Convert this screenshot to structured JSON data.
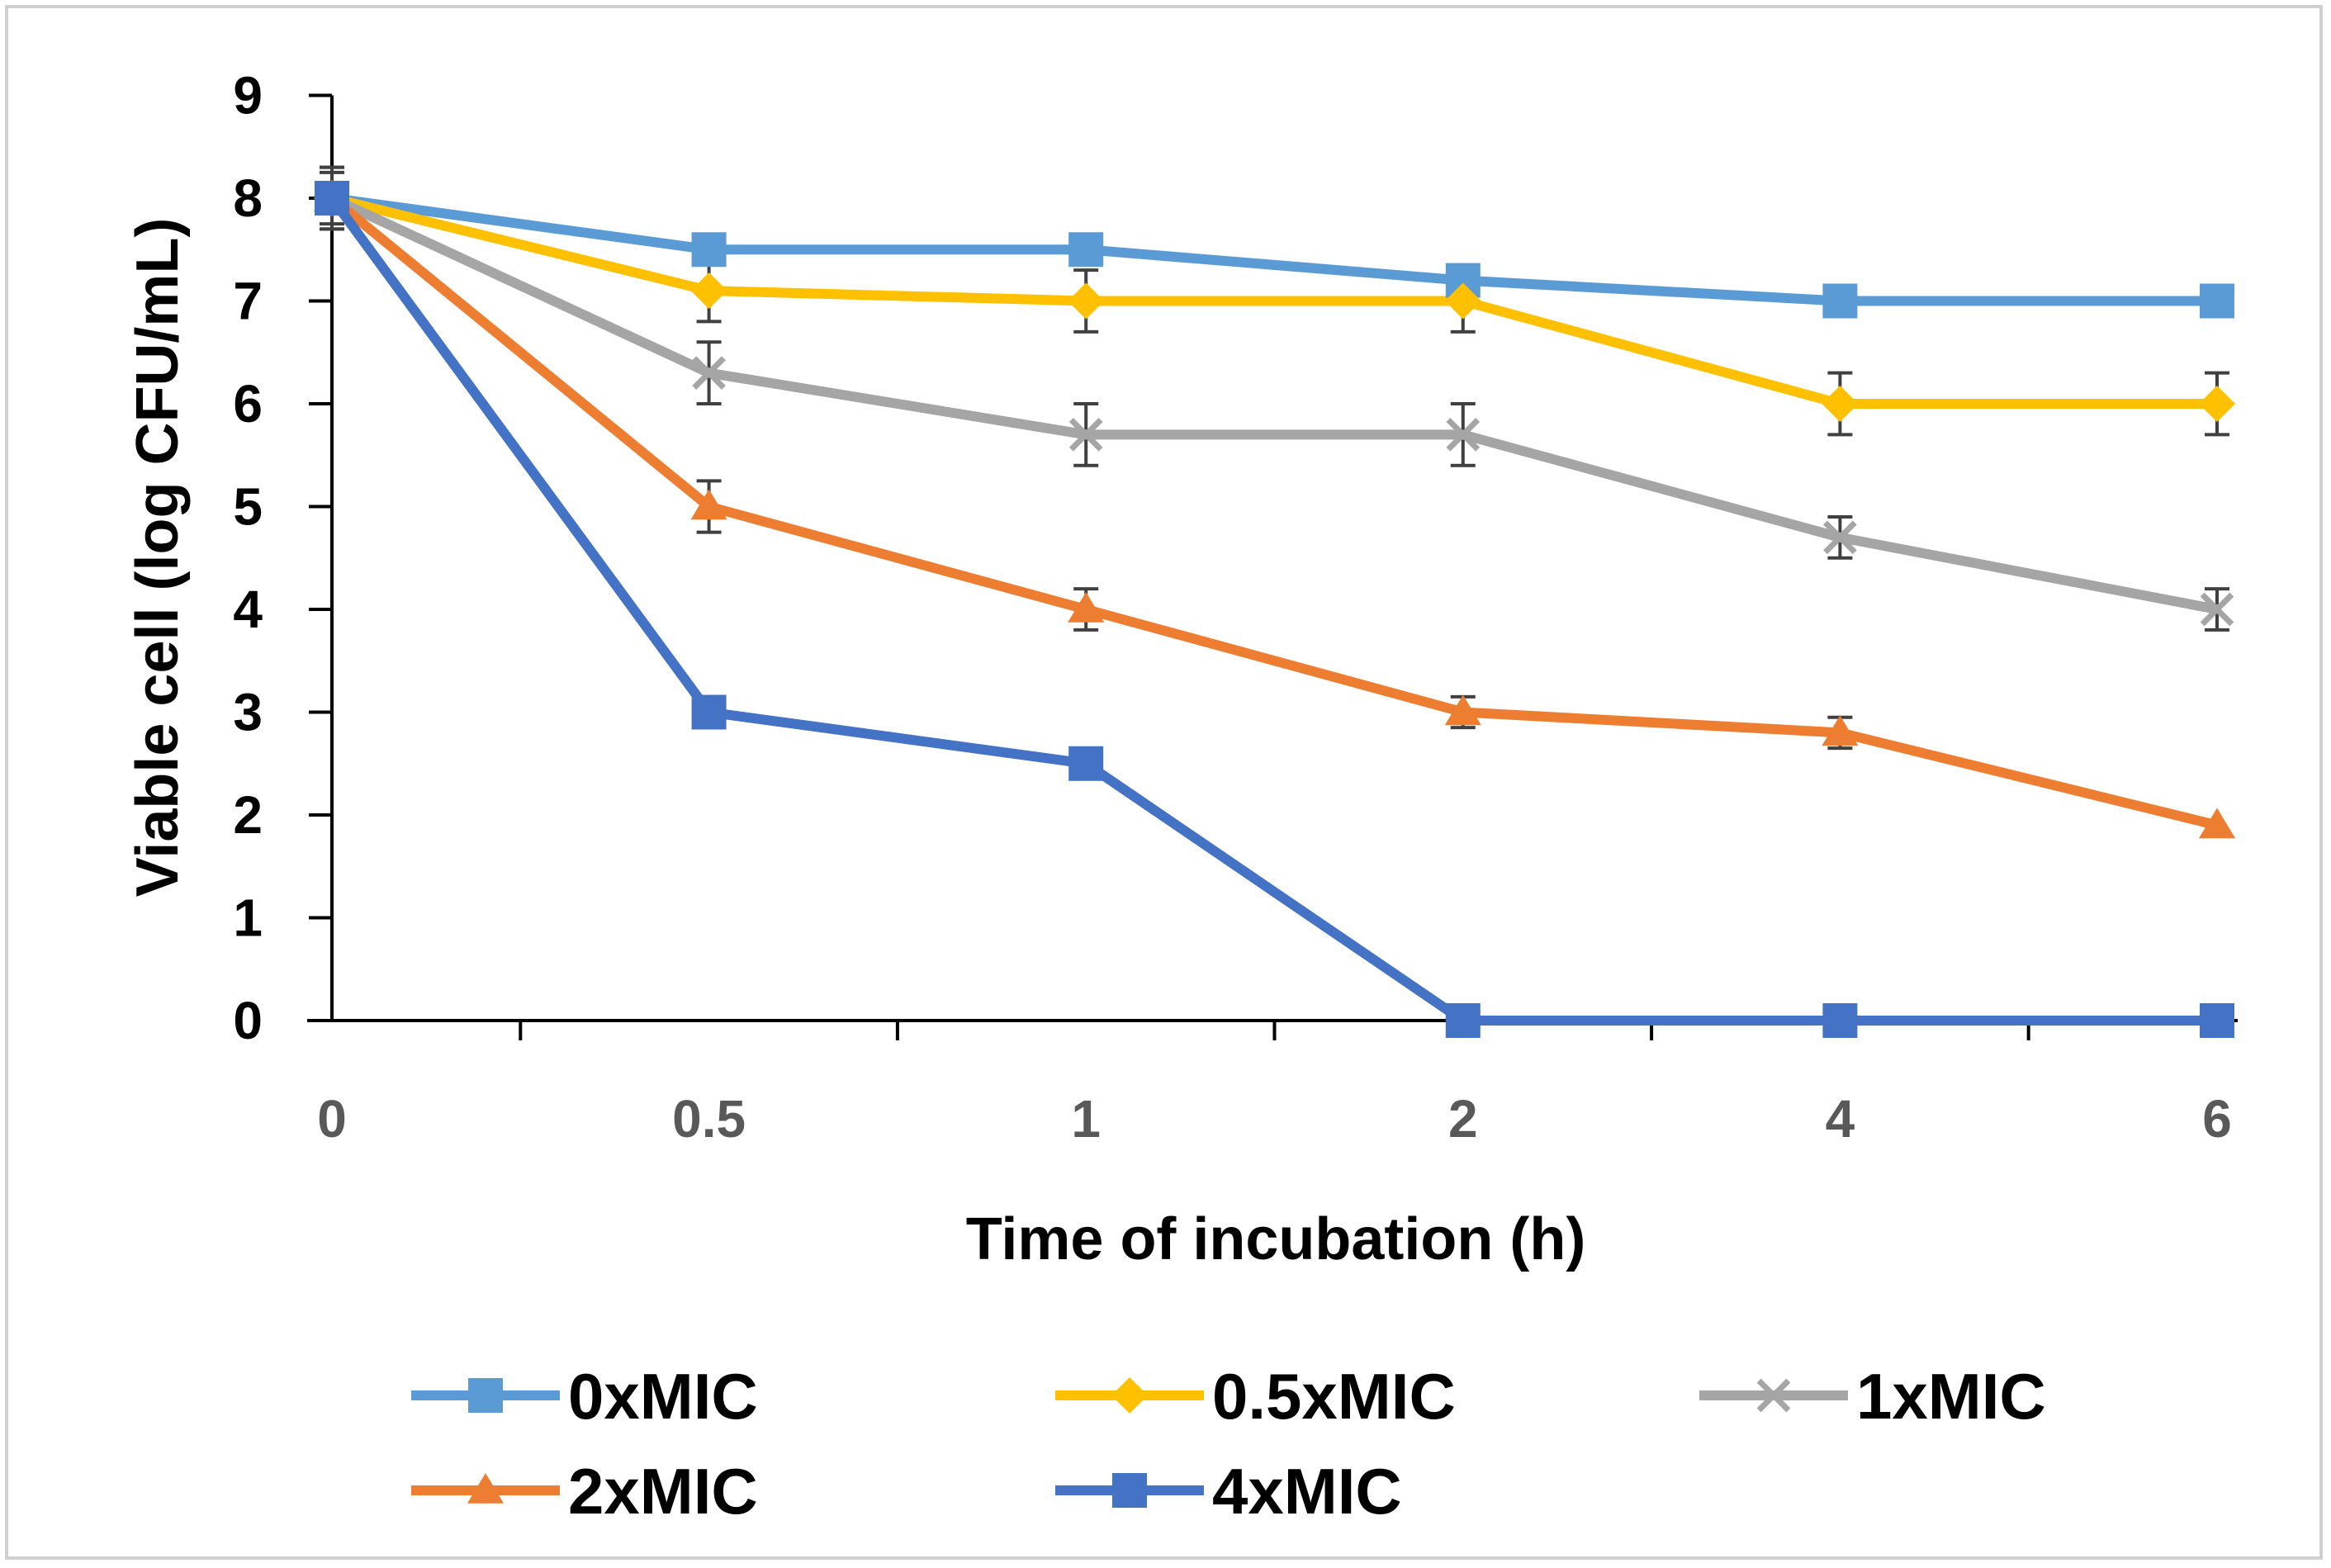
{
  "chart_data": {
    "type": "line",
    "title": "",
    "xlabel": "Time of incubation (h)",
    "ylabel": "Viable cell (log CFU/mL)",
    "categories": [
      "0",
      "0.5",
      "1",
      "2",
      "4",
      "6"
    ],
    "y_ticks": [
      "0",
      "1",
      "2",
      "3",
      "4",
      "5",
      "6",
      "7",
      "8",
      "9"
    ],
    "ylim": [
      0,
      9
    ],
    "grid": false,
    "legend_position": "bottom",
    "series": [
      {
        "name": "0xMIC",
        "color": "#5B9BD5",
        "marker": "square",
        "values": [
          8,
          7.5,
          7.5,
          7.2,
          7,
          7
        ],
        "errors": [
          0,
          0,
          0.15,
          0,
          0,
          0
        ]
      },
      {
        "name": "0.5xMIC",
        "color": "#FFC000",
        "marker": "diamond",
        "values": [
          8,
          7.1,
          7,
          7,
          6,
          6
        ],
        "errors": [
          0.3,
          0.3,
          0.3,
          0.3,
          0.3,
          0.3
        ]
      },
      {
        "name": "1xMIC",
        "color": "#A5A5A5",
        "marker": "x",
        "values": [
          8,
          6.3,
          5.7,
          5.7,
          4.7,
          4
        ],
        "errors": [
          0.3,
          0.3,
          0.3,
          0.3,
          0.2,
          0.2
        ]
      },
      {
        "name": "2xMIC",
        "color": "#ED7D31",
        "marker": "triangle",
        "values": [
          8,
          5,
          4,
          3,
          2.8,
          1.9
        ],
        "errors": [
          0.25,
          0.25,
          0.2,
          0.15,
          0.15,
          0
        ]
      },
      {
        "name": "4xMIC",
        "color": "#4472C4",
        "marker": "square",
        "values": [
          8,
          3,
          2.5,
          0,
          0,
          0
        ],
        "errors": [
          0,
          0,
          0,
          0,
          0,
          0
        ]
      }
    ]
  }
}
